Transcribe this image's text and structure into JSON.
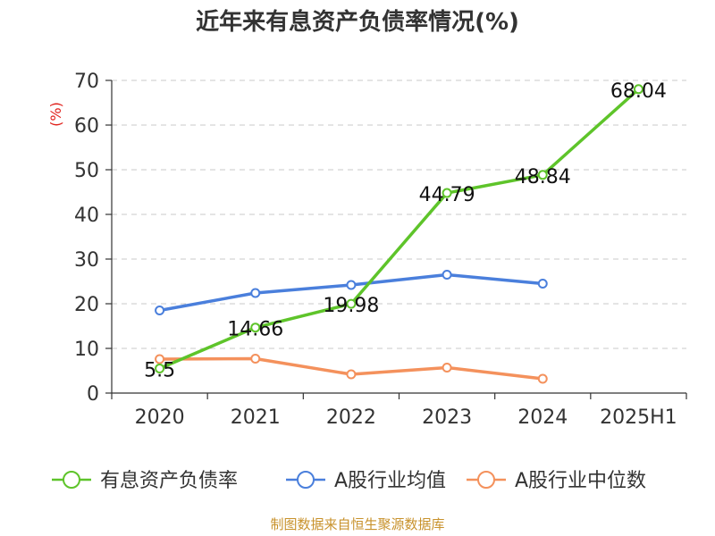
{
  "chart_data": {
    "type": "line",
    "title": "近年来有息资产负债率情况(%)",
    "xlabel": "",
    "ylabel": "(%)",
    "categories": [
      "2020",
      "2021",
      "2022",
      "2023",
      "2024",
      "2025H1"
    ],
    "ylim": [
      0,
      70
    ],
    "yticks": [
      0,
      10,
      20,
      30,
      40,
      50,
      60,
      70
    ],
    "grid": true,
    "legend_position": "bottom",
    "series": [
      {
        "name": "有息资产负债率",
        "color": "#5ec42a",
        "values": [
          5.5,
          14.66,
          19.98,
          44.79,
          48.84,
          68.04
        ],
        "labels": [
          "5.5",
          "14.66",
          "19.98",
          "44.79",
          "48.84",
          "68.04"
        ]
      },
      {
        "name": "A股行业均值",
        "color": "#4a7fdc",
        "values": [
          18.5,
          22.4,
          24.2,
          26.5,
          24.5,
          null
        ]
      },
      {
        "name": "A股行业中位数",
        "color": "#f4915c",
        "values": [
          7.6,
          7.7,
          4.2,
          5.7,
          3.2,
          null
        ]
      }
    ],
    "source": "制图数据来自恒生聚源数据库"
  }
}
